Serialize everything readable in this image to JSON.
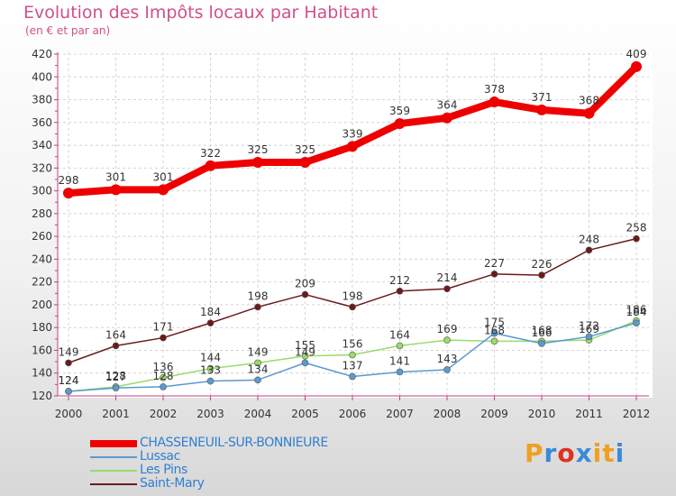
{
  "header": {
    "title": "Evolution des Impôts locaux par Habitant",
    "subtitle": "(en € et par an)"
  },
  "logo": {
    "text": "Proxiti",
    "colors": [
      "#f0a020",
      "#3a8ad8",
      "#e03020",
      "#3a8ad8",
      "#f0a020",
      "#f0a020",
      "#3a8ad8"
    ]
  },
  "chart_data": {
    "type": "line",
    "title": "Evolution des Impôts locaux par Habitant",
    "subtitle": "(en € et par an)",
    "xlabel": "",
    "ylabel": "",
    "x": [
      2000,
      2001,
      2002,
      2003,
      2004,
      2005,
      2006,
      2007,
      2008,
      2009,
      2010,
      2011,
      2012
    ],
    "ylim": [
      120,
      420
    ],
    "yticks": [
      120,
      140,
      160,
      180,
      200,
      220,
      240,
      260,
      280,
      300,
      320,
      340,
      360,
      380,
      400,
      420
    ],
    "grid": true,
    "legend_position": "bottom-left",
    "series": [
      {
        "name": "CHASSENEUIL-SUR-BONNIEURE",
        "color": "#ee0000",
        "values": [
          298,
          301,
          301,
          322,
          325,
          325,
          339,
          359,
          364,
          378,
          371,
          368,
          409
        ],
        "value_labels": [
          "298",
          "301",
          "301",
          "322",
          "325",
          "325",
          "339",
          "359",
          "364",
          "378",
          "371",
          "368",
          "409"
        ]
      },
      {
        "name": "Lussac",
        "color": "#5a9ad0",
        "values": [
          124,
          127,
          128,
          133,
          134,
          149,
          137,
          141,
          143,
          175,
          166,
          172,
          184
        ],
        "value_labels": [
          "124",
          "127",
          "128",
          "133",
          "134",
          "149",
          "137",
          "141",
          "143",
          "175",
          "166",
          "172",
          "184"
        ]
      },
      {
        "name": "Les Pins",
        "color": "#98dc6a",
        "values": [
          124,
          128,
          136,
          144,
          149,
          155,
          156,
          164,
          169,
          168,
          168,
          169,
          186
        ],
        "value_labels": [
          "124",
          "128",
          "136",
          "144",
          "149",
          "155",
          "156",
          "164",
          "169",
          "168",
          "168",
          "169",
          "186"
        ]
      },
      {
        "name": "Saint-Mary",
        "color": "#6a1a1a",
        "values": [
          149,
          164,
          171,
          184,
          198,
          209,
          198,
          212,
          214,
          227,
          226,
          248,
          258
        ],
        "value_labels": [
          "149",
          "164",
          "171",
          "184",
          "198",
          "209",
          "198",
          "212",
          "214",
          "227",
          "226",
          "248",
          "258"
        ]
      }
    ]
  }
}
